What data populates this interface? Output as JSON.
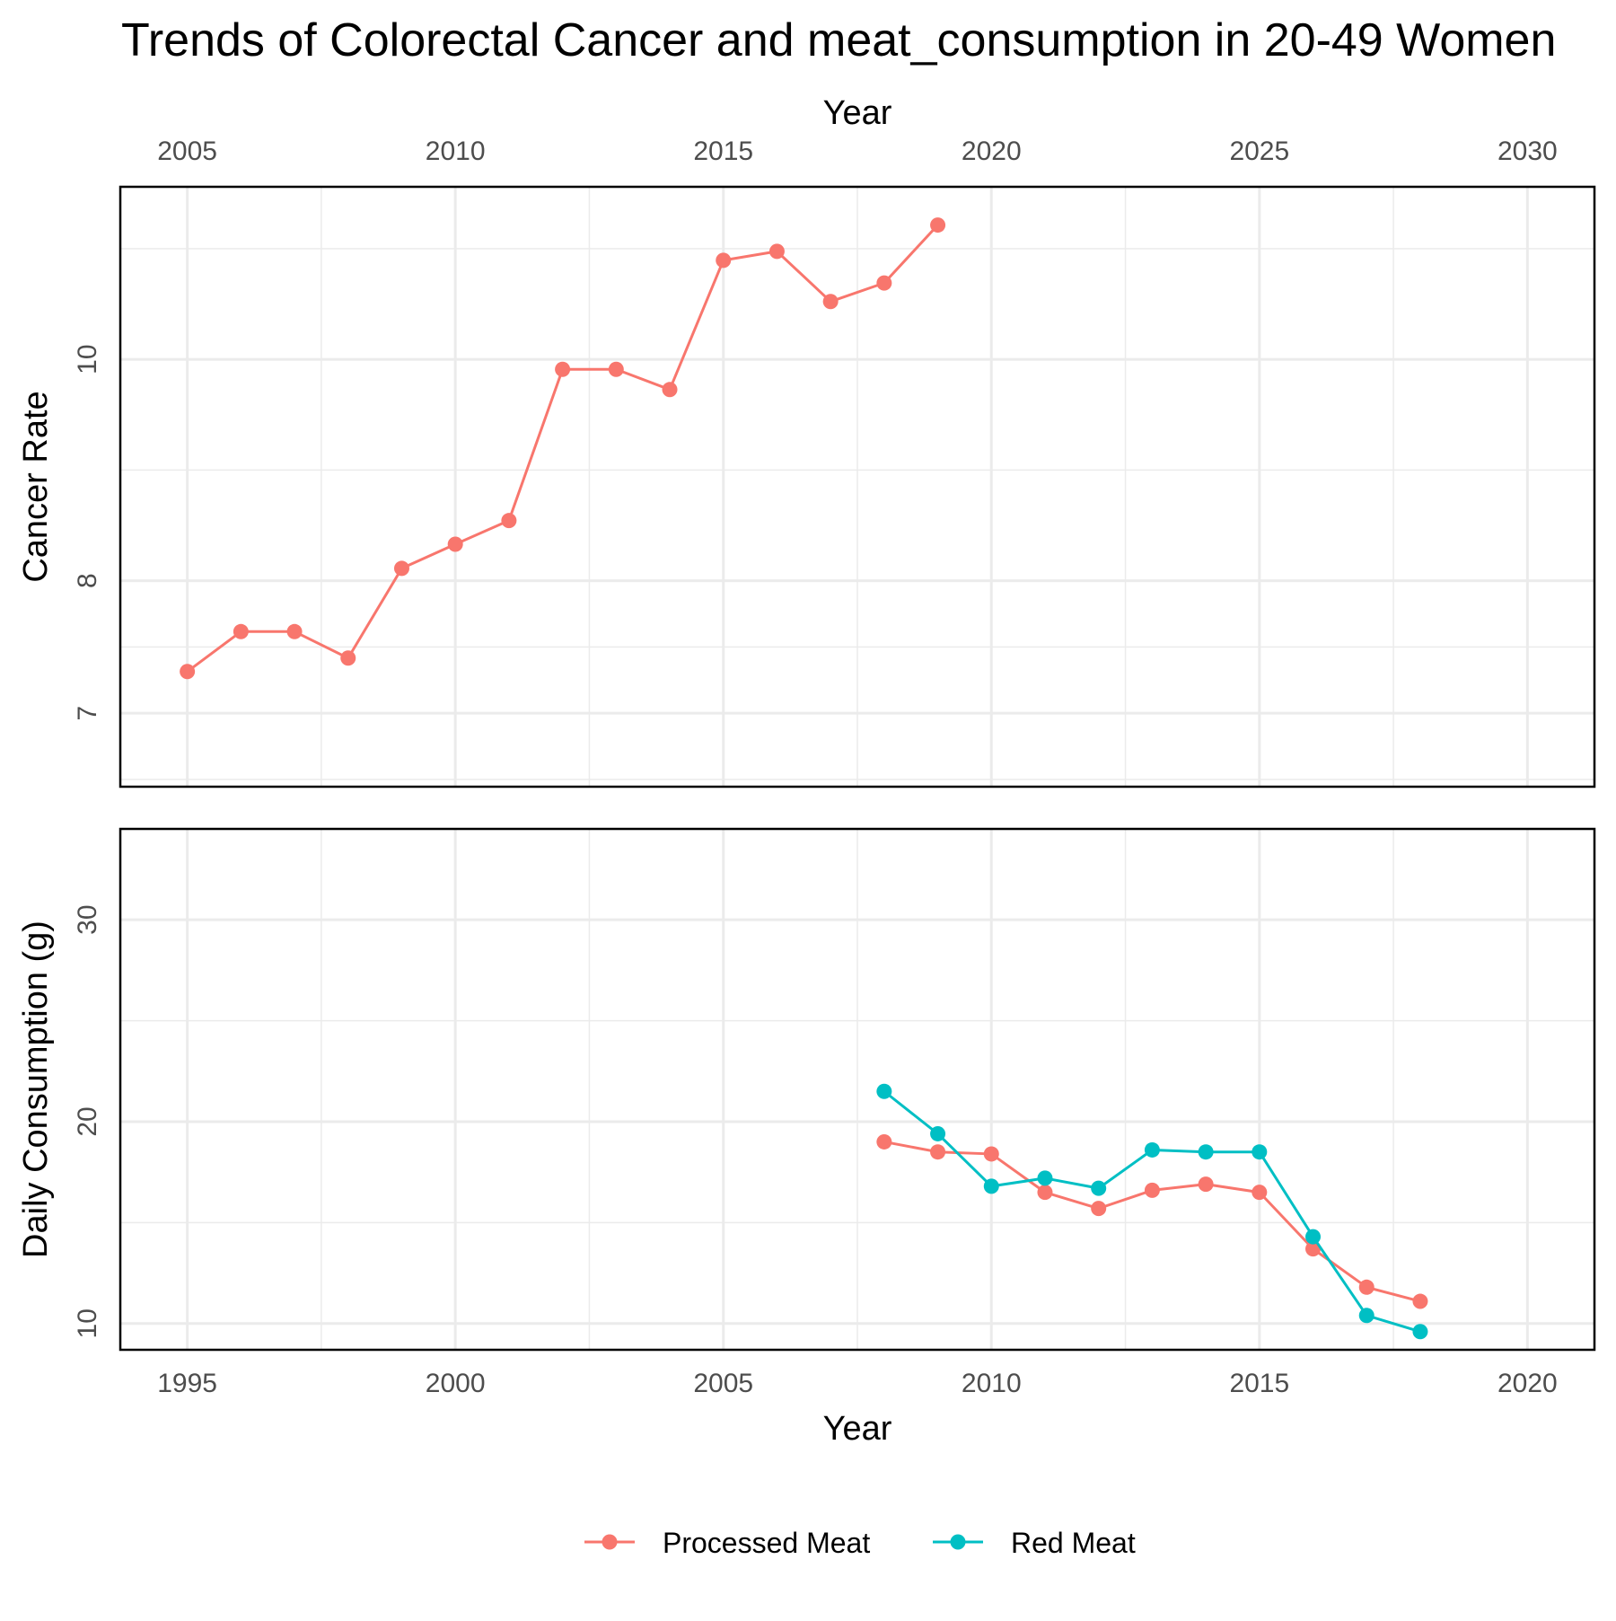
{
  "chart_data": [
    {
      "type": "line",
      "title": "Trends of Colorectal Cancer and meat_consumption in 20-49 Women",
      "xlabel": "Year",
      "ylabel": "Cancer Rate",
      "x_axis_position": "top",
      "y_scale": "log",
      "x_ticks": [
        2005,
        2010,
        2015,
        2020,
        2025,
        2030
      ],
      "y_ticks": [
        7,
        8,
        10
      ],
      "xlim": [
        2003.75,
        2031.25
      ],
      "ylim": [
        6.5,
        11.9
      ],
      "grid": true,
      "series": [
        {
          "color": "#F8766D",
          "x": [
            2005,
            2006,
            2007,
            2008,
            2009,
            2010,
            2011,
            2012,
            2013,
            2014,
            2015,
            2016,
            2017,
            2018,
            2019
          ],
          "y": [
            7.3,
            7.6,
            7.6,
            7.4,
            8.1,
            8.3,
            8.5,
            9.9,
            9.9,
            9.7,
            11.05,
            11.15,
            10.6,
            10.8,
            11.45
          ]
        }
      ]
    },
    {
      "type": "line",
      "xlabel": "Year",
      "ylabel": "Daily Consumption (g)",
      "x_ticks": [
        1995,
        2000,
        2005,
        2010,
        2015,
        2020
      ],
      "y_ticks": [
        10,
        20,
        30
      ],
      "xlim": [
        1993.75,
        2021.25
      ],
      "ylim": [
        8.7,
        34.5
      ],
      "grid": true,
      "legend_position": "bottom",
      "series": [
        {
          "name": "Processed Meat",
          "color": "#F8766D",
          "x": [
            2008,
            2009,
            2010,
            2011,
            2012,
            2013,
            2014,
            2015,
            2016,
            2017,
            2018
          ],
          "y": [
            19.0,
            18.5,
            18.4,
            16.5,
            15.7,
            16.6,
            16.9,
            16.5,
            13.7,
            11.8,
            11.1
          ]
        },
        {
          "name": "Red Meat",
          "color": "#00BFC4",
          "x": [
            2008,
            2009,
            2010,
            2011,
            2012,
            2013,
            2014,
            2015,
            2016,
            2017,
            2018
          ],
          "y": [
            21.5,
            19.4,
            16.8,
            17.2,
            16.7,
            18.6,
            18.5,
            18.5,
            14.3,
            10.4,
            9.6
          ]
        }
      ]
    }
  ]
}
